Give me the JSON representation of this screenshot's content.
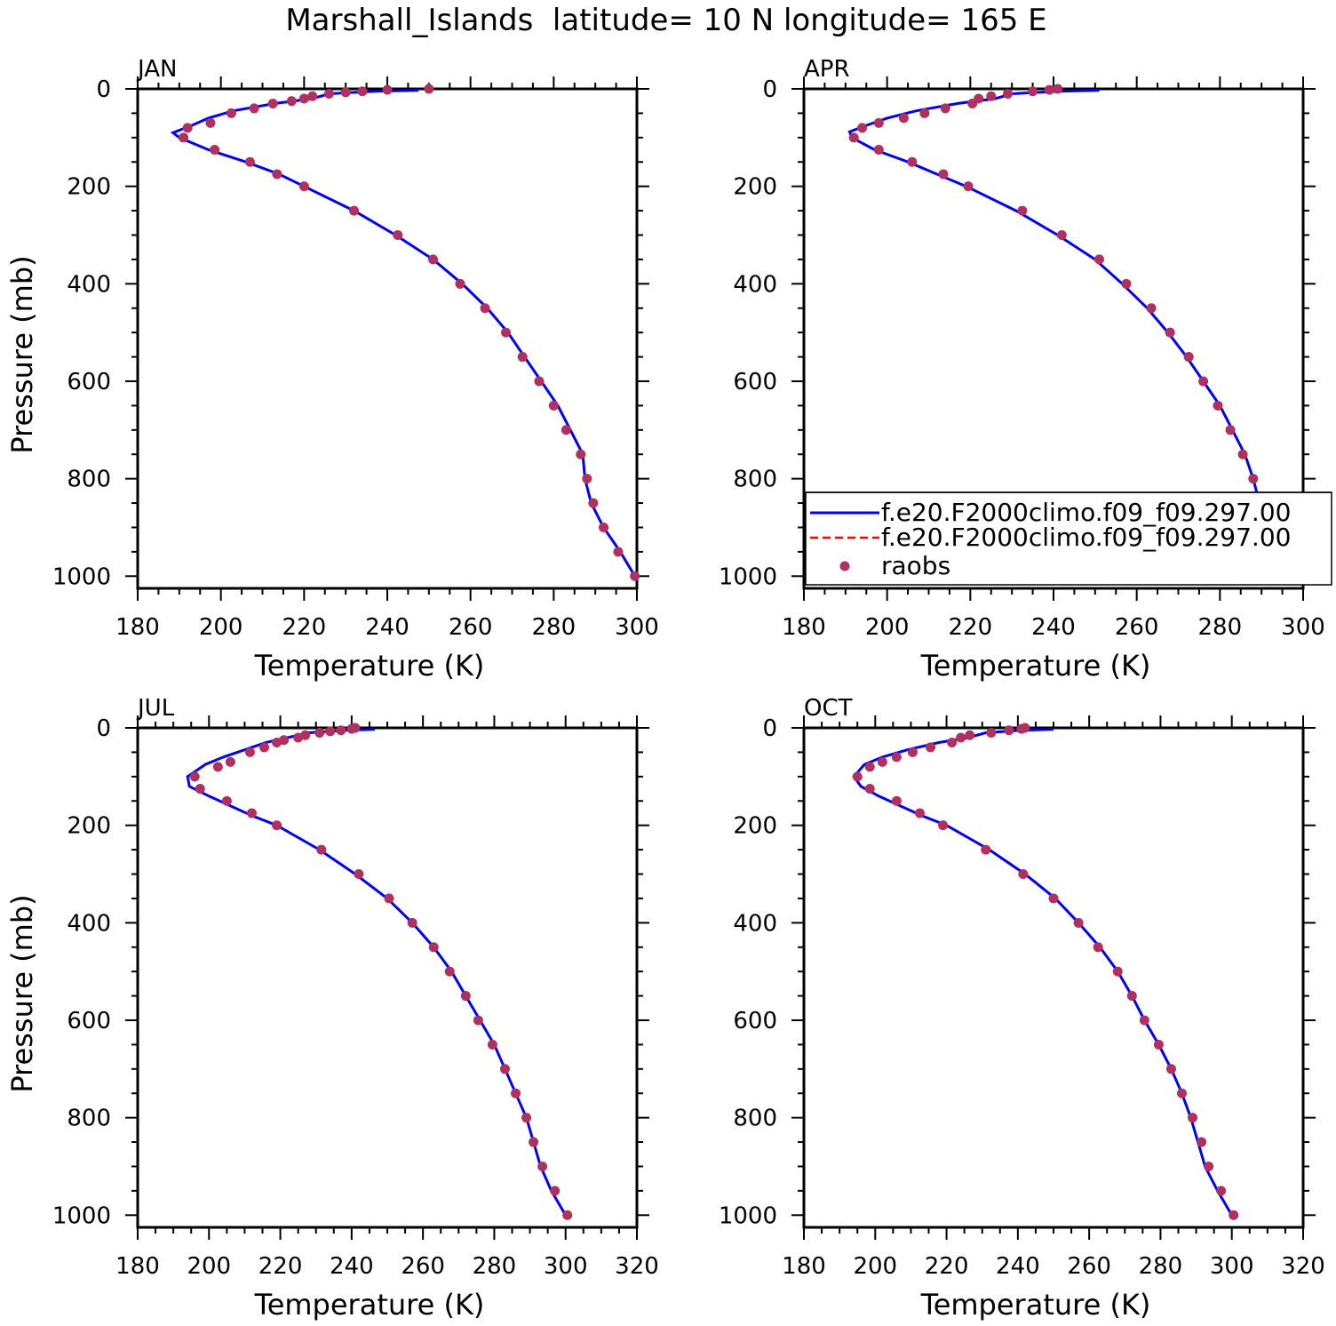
{
  "figure": {
    "title": "Marshall_Islands  latitude= 10 N longitude= 165 E"
  },
  "colors": {
    "model1": "#0000ff",
    "model2": "#ff0000",
    "obs": "#b03060",
    "axis": "#000000"
  },
  "legend": {
    "entries": [
      {
        "label": "f.e20.F2000climo.f09_f09.297.00",
        "style": "solid-line",
        "color": "#0000ff"
      },
      {
        "label": "f.e20.F2000climo.f09_f09.297.00",
        "style": "dashed-line",
        "color": "#ff0000"
      },
      {
        "label": "raobs",
        "style": "marker",
        "color": "#b03060"
      }
    ]
  },
  "chart_data": [
    {
      "type": "line",
      "panel_label": "JAN",
      "xlabel": "Temperature (K)",
      "ylabel": "Pressure (mb)",
      "xlim": [
        180,
        300
      ],
      "ylim": [
        1025,
        0
      ],
      "xticks": [
        180,
        200,
        220,
        240,
        260,
        280,
        300
      ],
      "yticks": [
        0,
        200,
        400,
        600,
        800,
        1000
      ],
      "show_ylabel": true,
      "model": {
        "t": [
          247.5,
          237,
          226,
          222,
          213,
          203,
          197,
          193,
          188.5,
          190,
          197,
          206,
          214,
          220,
          232,
          242,
          251,
          258,
          264,
          269,
          273,
          277,
          281,
          284,
          287,
          287.5,
          289,
          292,
          296,
          299.5
        ],
        "p": [
          3,
          5,
          10,
          20,
          30,
          45,
          60,
          75,
          90,
          100,
          125,
          150,
          175,
          200,
          250,
          300,
          350,
          400,
          450,
          500,
          550,
          600,
          650,
          700,
          750,
          800,
          850,
          900,
          950,
          1000
        ]
      },
      "obs": {
        "t": [
          250,
          240,
          234,
          230,
          226,
          222,
          220,
          217,
          212.5,
          208,
          202.5,
          197.5,
          192,
          191,
          198.5,
          207,
          213.5,
          220,
          232,
          242.5,
          251,
          257.5,
          263.5,
          268.5,
          272.5,
          276.5,
          280,
          283,
          286.5,
          288,
          289.5,
          292,
          295.5,
          299.5
        ],
        "p": [
          0,
          2,
          5,
          7,
          10,
          15,
          20,
          25,
          30,
          40,
          50,
          70,
          80,
          100,
          125,
          150,
          175,
          200,
          250,
          300,
          350,
          400,
          450,
          500,
          550,
          600,
          650,
          700,
          750,
          800,
          850,
          900,
          950,
          1000
        ]
      }
    },
    {
      "type": "line",
      "panel_label": "APR",
      "xlabel": "Temperature (K)",
      "ylabel": "",
      "xlim": [
        180,
        300
      ],
      "ylim": [
        1025,
        0
      ],
      "xticks": [
        180,
        200,
        220,
        240,
        260,
        280,
        300
      ],
      "yticks": [
        0,
        200,
        400,
        600,
        800,
        1000
      ],
      "show_ylabel": false,
      "show_legend": true,
      "model": {
        "t": [
          251,
          241,
          230,
          226,
          217,
          207,
          200,
          195,
          191,
          191.5,
          197,
          205,
          212,
          219,
          231,
          241,
          250,
          256.5,
          262.5,
          267.5,
          272,
          276,
          280,
          283,
          286,
          288,
          289.5,
          292,
          295.5,
          299.5
        ],
        "p": [
          3,
          5,
          10,
          20,
          30,
          45,
          60,
          75,
          88,
          100,
          125,
          150,
          175,
          200,
          250,
          300,
          350,
          400,
          450,
          500,
          550,
          600,
          650,
          700,
          750,
          800,
          850,
          900,
          950,
          1000
        ]
      },
      "obs": {
        "t": [
          241,
          239,
          235,
          229,
          225,
          222,
          220.5,
          214,
          209,
          204,
          198,
          194,
          192,
          198,
          206,
          213.5,
          219.5,
          232.5,
          242,
          251,
          257.5,
          263.5,
          268,
          272.5,
          276,
          279.5,
          282.5,
          285.5,
          288,
          289.5,
          292,
          296.5,
          300
        ],
        "p": [
          0,
          2,
          5,
          10,
          15,
          20,
          30,
          40,
          50,
          60,
          70,
          80,
          100,
          125,
          150,
          175,
          200,
          250,
          300,
          350,
          400,
          450,
          500,
          550,
          600,
          650,
          700,
          750,
          800,
          850,
          900,
          950,
          1000
        ]
      }
    },
    {
      "type": "line",
      "panel_label": "JUL",
      "xlabel": "Temperature (K)",
      "ylabel": "Pressure (mb)",
      "xlim": [
        180,
        320
      ],
      "ylim": [
        1025,
        0
      ],
      "xticks": [
        180,
        200,
        220,
        240,
        260,
        280,
        300,
        320
      ],
      "yticks": [
        0,
        200,
        400,
        600,
        800,
        1000
      ],
      "show_ylabel": true,
      "model": {
        "t": [
          246.5,
          238,
          228,
          222,
          216,
          210,
          204,
          199,
          194,
          194.5,
          200,
          206,
          212,
          219,
          231,
          241,
          250,
          257,
          263,
          268,
          272,
          276,
          280,
          283,
          286,
          289,
          291,
          293,
          296,
          300
        ],
        "p": [
          3,
          5,
          10,
          20,
          30,
          45,
          60,
          75,
          100,
          120,
          140,
          160,
          180,
          200,
          250,
          300,
          350,
          400,
          450,
          500,
          550,
          600,
          650,
          700,
          750,
          800,
          850,
          900,
          950,
          1000
        ]
      },
      "obs": {
        "t": [
          241,
          240,
          237,
          234,
          231,
          227,
          225,
          221,
          219,
          215.5,
          211.5,
          206,
          202.5,
          196,
          197.5,
          205,
          212,
          219,
          231.5,
          242,
          250.5,
          257,
          263,
          267.5,
          272,
          275.5,
          279.5,
          283,
          286,
          289,
          291,
          293.5,
          297,
          300.5
        ],
        "p": [
          0,
          2,
          5,
          7,
          10,
          15,
          20,
          25,
          30,
          40,
          50,
          70,
          80,
          100,
          125,
          150,
          175,
          200,
          250,
          300,
          350,
          400,
          450,
          500,
          550,
          600,
          650,
          700,
          750,
          800,
          850,
          900,
          950,
          1000
        ]
      }
    },
    {
      "type": "line",
      "panel_label": "OCT",
      "xlabel": "Temperature (K)",
      "ylabel": "",
      "xlim": [
        180,
        320
      ],
      "ylim": [
        1025,
        0
      ],
      "xticks": [
        180,
        200,
        220,
        240,
        260,
        280,
        300,
        320
      ],
      "yticks": [
        0,
        200,
        400,
        600,
        800,
        1000
      ],
      "show_ylabel": false,
      "model": {
        "t": [
          250,
          241,
          231,
          226,
          218,
          209,
          202,
          197,
          194,
          196,
          201,
          207,
          213,
          220,
          232,
          242,
          250.5,
          257,
          263,
          268,
          272,
          275.5,
          279.5,
          283,
          286,
          288.5,
          290.5,
          292.5,
          296,
          300
        ],
        "p": [
          3,
          5,
          10,
          20,
          30,
          45,
          60,
          75,
          100,
          120,
          140,
          160,
          180,
          200,
          250,
          300,
          350,
          400,
          450,
          500,
          550,
          600,
          650,
          700,
          750,
          800,
          850,
          900,
          950,
          1000
        ]
      },
      "obs": {
        "t": [
          242,
          241,
          237.5,
          232.5,
          226.5,
          224,
          221.5,
          215.5,
          210.5,
          206,
          202,
          198.5,
          195,
          198.5,
          206,
          212.5,
          219,
          231,
          241.5,
          250,
          257,
          262.5,
          268,
          272,
          275.5,
          279.5,
          283,
          286,
          289,
          291.5,
          293.5,
          297,
          300.5
        ],
        "p": [
          0,
          2,
          5,
          10,
          15,
          20,
          30,
          40,
          50,
          60,
          70,
          80,
          100,
          125,
          150,
          175,
          200,
          250,
          300,
          350,
          400,
          450,
          500,
          550,
          600,
          650,
          700,
          750,
          800,
          850,
          900,
          950,
          1000
        ]
      }
    }
  ]
}
